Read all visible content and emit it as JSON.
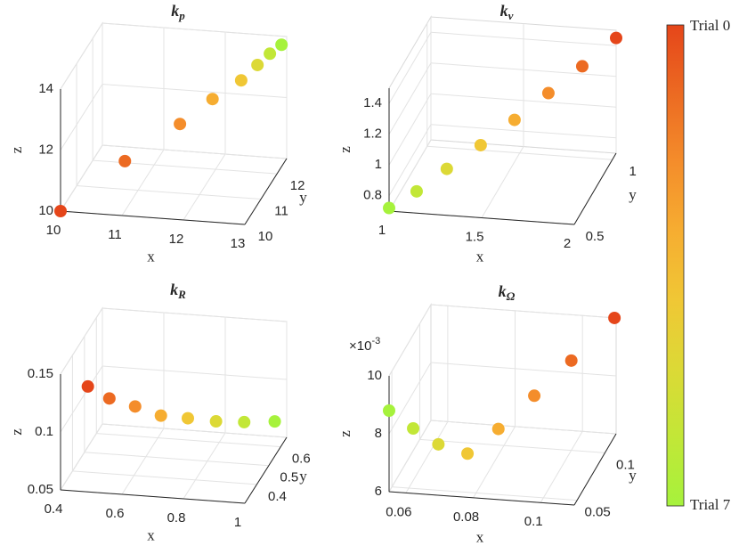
{
  "chart_data": [
    {
      "type": "scatter3d",
      "title": "k",
      "title_subscript": "p",
      "xlabel": "x",
      "ylabel": "y",
      "zlabel": "z",
      "xlim": [
        10,
        13
      ],
      "ylim": [
        10,
        12.6
      ],
      "zlim": [
        10,
        14
      ],
      "xticks": [
        10,
        11,
        12,
        13
      ],
      "yticks": [
        10,
        11,
        12
      ],
      "zticks": [
        10,
        12,
        14
      ],
      "grid": true,
      "x": [
        10,
        10.83,
        11.54,
        11.96,
        12.33,
        12.54,
        12.7,
        12.85
      ],
      "y": [
        10,
        10.83,
        11.54,
        11.96,
        12.33,
        12.54,
        12.7,
        12.85
      ],
      "z": [
        10,
        11.07,
        11.8,
        12.33,
        12.69,
        13.05,
        13.31,
        13.5
      ]
    },
    {
      "type": "scatter3d",
      "title": "k",
      "title_subscript": "v",
      "xlabel": "x",
      "ylabel": "y",
      "zlabel": "z",
      "xlim": [
        1,
        2
      ],
      "ylim": [
        0.5,
        1.05
      ],
      "zlim": [
        0.7,
        1.5
      ],
      "xticks": [
        1,
        1.5,
        2
      ],
      "yticks": [
        0.5,
        1
      ],
      "zticks": [
        0.8,
        1,
        1.2,
        1.4
      ],
      "grid": true,
      "x": [
        2,
        1.85,
        1.7,
        1.55,
        1.4,
        1.25,
        1.12,
        1
      ],
      "y": [
        1.05,
        0.97,
        0.89,
        0.81,
        0.73,
        0.65,
        0.57,
        0.5
      ],
      "z": [
        1.45,
        1.32,
        1.2,
        1.08,
        0.97,
        0.87,
        0.78,
        0.72
      ]
    },
    {
      "type": "scatter3d",
      "title": "k",
      "title_subscript": "R",
      "xlabel": "x",
      "ylabel": "y",
      "zlabel": "z",
      "xlim": [
        0.4,
        1
      ],
      "ylim": [
        0.3,
        0.65
      ],
      "zlim": [
        0.05,
        0.15
      ],
      "xticks": [
        0.4,
        0.6,
        0.8,
        1
      ],
      "yticks": [
        0.4,
        0.5,
        0.6
      ],
      "zticks": [
        0.05,
        0.1,
        0.15
      ],
      "grid": true,
      "x": [
        0.45,
        0.52,
        0.6,
        0.68,
        0.76,
        0.84,
        0.92,
        1
      ],
      "y": [
        0.4,
        0.4,
        0.41,
        0.42,
        0.44,
        0.47,
        0.5,
        0.55
      ],
      "z": [
        0.124,
        0.115,
        0.108,
        0.1,
        0.096,
        0.09,
        0.086,
        0.08
      ]
    },
    {
      "type": "scatter3d",
      "title": "k",
      "title_subscript": "Ω",
      "xlabel": "x",
      "ylabel": "y",
      "zlabel": "z",
      "xlim": [
        0.055,
        0.11
      ],
      "ylim": [
        0.045,
        0.12
      ],
      "zlim": [
        0.006,
        0.01
      ],
      "xticks": [
        0.06,
        0.08,
        0.1
      ],
      "yticks": [
        0.05,
        0.1
      ],
      "zticks": [
        {
          "value": 0.006,
          "label": "6"
        },
        {
          "value": 0.008,
          "label": "8"
        },
        {
          "value": 0.01,
          "label": "10"
        }
      ],
      "zmultiplier": {
        "base": "×10",
        "exponent": "-3"
      },
      "grid": true,
      "x": [
        0.11,
        0.1,
        0.09,
        0.08,
        0.07,
        0.065,
        0.06,
        0.055
      ],
      "y": [
        0.117,
        0.1,
        0.094,
        0.09,
        0.095,
        0.073,
        0.058,
        0.045
      ],
      "z": [
        0.0101,
        0.0091,
        0.008,
        0.0069,
        0.0058,
        0.0068,
        0.0078,
        0.0088
      ]
    },
    {
      "type": "colorbar",
      "top_label": "Trial 0",
      "bottom_label": "Trial 7",
      "colors": [
        "#e5461a",
        "#ec6a22",
        "#f48d2b",
        "#f6ad31",
        "#f0c735",
        "#dcd936",
        "#c2e737",
        "#a6f23c"
      ]
    }
  ]
}
